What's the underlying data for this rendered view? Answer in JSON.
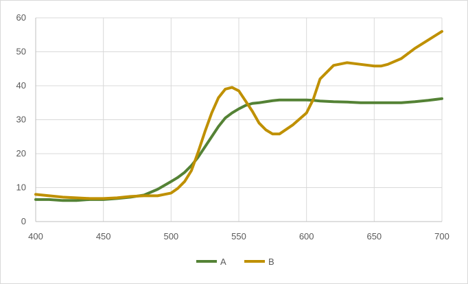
{
  "chart_data": {
    "type": "line",
    "title": "",
    "xlabel": "",
    "ylabel": "",
    "xlim": [
      400,
      700
    ],
    "ylim": [
      0,
      60
    ],
    "x_ticks": [
      400,
      450,
      500,
      550,
      600,
      650,
      700
    ],
    "y_ticks": [
      0,
      10,
      20,
      30,
      40,
      50,
      60
    ],
    "x_tick_labels": [
      "400",
      "450",
      "500",
      "550",
      "600",
      "650",
      "700"
    ],
    "y_tick_labels": [
      "0",
      "10",
      "20",
      "30",
      "40",
      "50",
      "60"
    ],
    "grid": "on",
    "legend_position": "bottom",
    "x": [
      400,
      410,
      420,
      430,
      440,
      450,
      460,
      470,
      480,
      490,
      500,
      505,
      510,
      515,
      520,
      525,
      530,
      535,
      540,
      545,
      550,
      555,
      560,
      565,
      570,
      575,
      580,
      590,
      600,
      605,
      610,
      620,
      630,
      640,
      650,
      655,
      660,
      670,
      680,
      690,
      700
    ],
    "series": [
      {
        "name": "A",
        "color": "#548235",
        "values": [
          6.5,
          6.5,
          6.2,
          6.2,
          6.5,
          6.5,
          6.8,
          7.2,
          7.8,
          9.5,
          11.8,
          13.0,
          14.5,
          16.5,
          19.0,
          22.0,
          25.0,
          28.0,
          30.5,
          32.0,
          33.2,
          34.2,
          34.8,
          35.0,
          35.3,
          35.6,
          35.8,
          35.8,
          35.8,
          35.7,
          35.5,
          35.3,
          35.2,
          35.0,
          35.0,
          35.0,
          35.0,
          35.0,
          35.3,
          35.7,
          36.2
        ]
      },
      {
        "name": "B",
        "color": "#bf9000",
        "values": [
          8.0,
          7.6,
          7.2,
          7.0,
          6.8,
          6.8,
          7.0,
          7.4,
          7.6,
          7.6,
          8.4,
          9.8,
          11.8,
          15.0,
          20.5,
          26.5,
          32.0,
          36.5,
          39.0,
          39.5,
          38.5,
          35.5,
          32.5,
          29.0,
          27.0,
          25.8,
          25.8,
          28.5,
          32.0,
          36.0,
          42.0,
          46.0,
          46.8,
          46.3,
          45.8,
          45.8,
          46.3,
          48.0,
          51.0,
          53.5,
          56.0
        ]
      }
    ]
  }
}
